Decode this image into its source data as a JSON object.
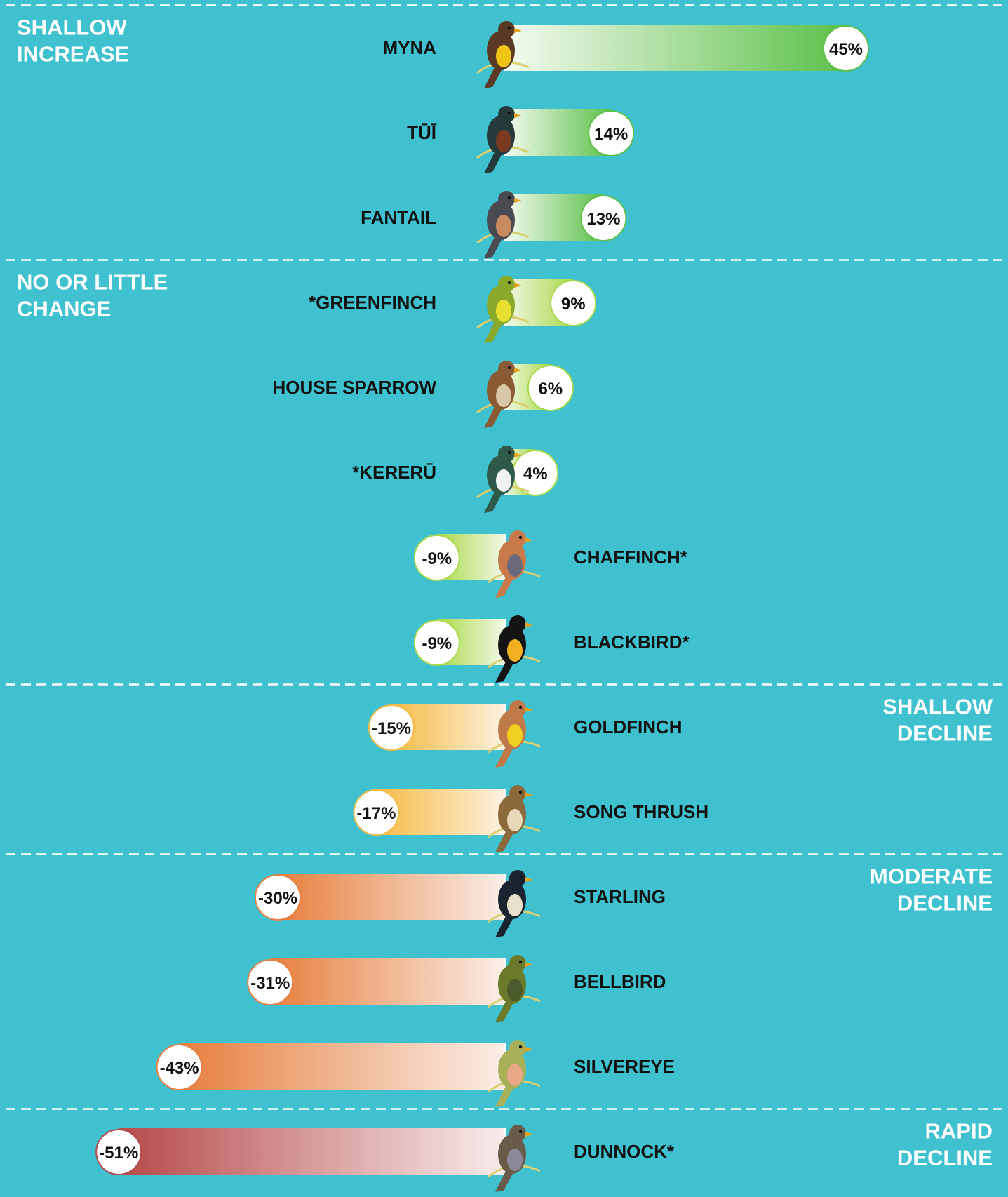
{
  "chart_data": {
    "type": "bar",
    "orientation": "horizontal",
    "unit": "%",
    "xlim": [
      -55,
      52
    ],
    "groups": [
      {
        "label_lines": [
          "SHALLOW",
          "INCREASE"
        ],
        "align": "left",
        "color_start": "#f4fbf0",
        "color_end": "#5cc04a"
      },
      {
        "label_lines": [
          "NO OR LITTLE",
          "CHANGE"
        ],
        "align": "left",
        "color_start": "#f2f8e6",
        "color_end": "#a9d94a"
      },
      {
        "label_lines": [
          "SHALLOW",
          "DECLINE"
        ],
        "align": "right",
        "color_start": "#fdf1df",
        "color_end": "#f6bb45"
      },
      {
        "label_lines": [
          "MODERATE",
          "DECLINE"
        ],
        "align": "right",
        "color_start": "#fbeee6",
        "color_end": "#e67f3f"
      },
      {
        "label_lines": [
          "RAPID",
          "DECLINE"
        ],
        "align": "right",
        "color_start": "#f8ecec",
        "color_end": "#b64a4a"
      }
    ],
    "birds": [
      {
        "name": "MYNA",
        "value": 45,
        "label": "45%",
        "group": 0,
        "colors": [
          "#5a3a24",
          "#f2c418"
        ]
      },
      {
        "name": "TŪĪ",
        "value": 14,
        "label": "14%",
        "group": 0,
        "colors": [
          "#243a3a",
          "#7a3a22"
        ]
      },
      {
        "name": "FANTAIL",
        "value": 13,
        "label": "13%",
        "group": 0,
        "colors": [
          "#4a4a52",
          "#c98a62"
        ]
      },
      {
        "name": "*GREENFINCH",
        "value": 9,
        "label": "9%",
        "group": 1,
        "colors": [
          "#8aa82a",
          "#e8e030"
        ]
      },
      {
        "name": "HOUSE SPARROW",
        "value": 6,
        "label": "6%",
        "group": 1,
        "colors": [
          "#8a5a34",
          "#d8c8a8"
        ]
      },
      {
        "name": "*KERERŪ",
        "value": 4,
        "label": "4%",
        "group": 1,
        "colors": [
          "#2f5a4a",
          "#f2f2f2"
        ]
      },
      {
        "name": "CHAFFINCH*",
        "value": -9,
        "label": "-9%",
        "group": 1,
        "colors": [
          "#c87a4a",
          "#6a6a7a"
        ]
      },
      {
        "name": "BLACKBIRD*",
        "value": -9,
        "label": "-9%",
        "group": 1,
        "colors": [
          "#141414",
          "#f0b020"
        ]
      },
      {
        "name": "GOLDFINCH",
        "value": -15,
        "label": "-15%",
        "group": 2,
        "colors": [
          "#c07a4a",
          "#f0d020"
        ]
      },
      {
        "name": "SONG THRUSH",
        "value": -17,
        "label": "-17%",
        "group": 2,
        "colors": [
          "#8a6a3a",
          "#e8d8b8"
        ]
      },
      {
        "name": "STARLING",
        "value": -30,
        "label": "-30%",
        "group": 3,
        "colors": [
          "#1a2430",
          "#e8e0c8"
        ]
      },
      {
        "name": "BELLBIRD",
        "value": -31,
        "label": "-31%",
        "group": 3,
        "colors": [
          "#6a7a2a",
          "#4a5a2a"
        ]
      },
      {
        "name": "SILVEREYE",
        "value": -43,
        "label": "-43%",
        "group": 3,
        "colors": [
          "#a8b058",
          "#e8a888"
        ]
      },
      {
        "name": "DUNNOCK*",
        "value": -51,
        "label": "-51%",
        "group": 4,
        "colors": [
          "#6a5a4a",
          "#8a8a98"
        ]
      }
    ]
  }
}
